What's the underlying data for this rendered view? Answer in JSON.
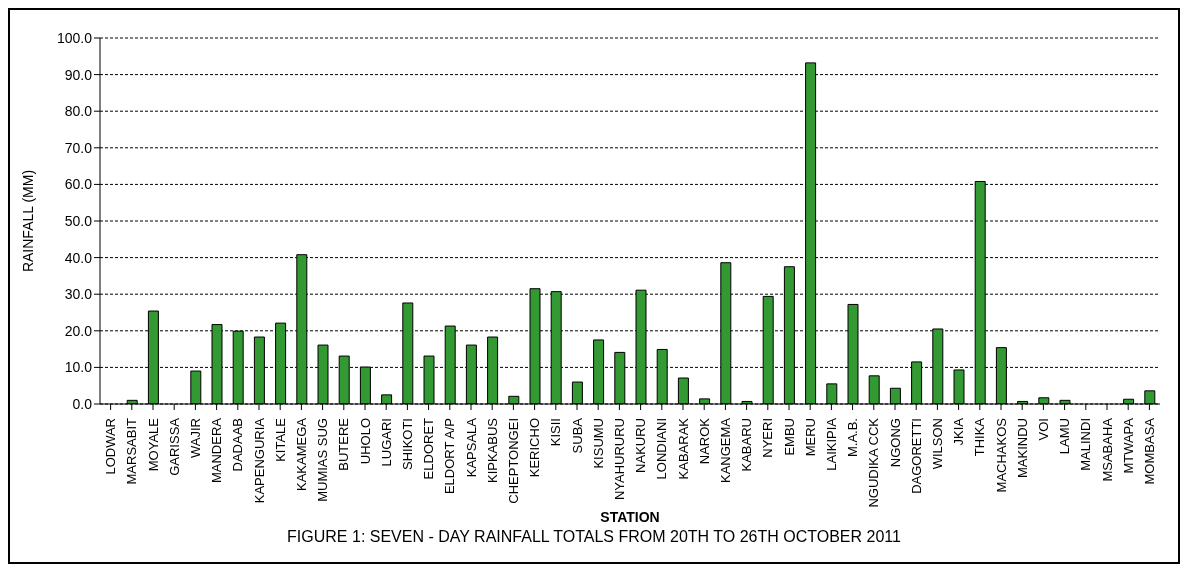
{
  "chart_data": {
    "type": "bar",
    "title": "FIGURE 1: SEVEN - DAY RAINFALL TOTALS FROM 20TH TO 26TH OCTOBER 2011",
    "xlabel": "STATION",
    "ylabel": "RAINFALL (MM)",
    "categories": [
      "LODWAR",
      "MARSABIT",
      "MOYALE",
      "GARISSA",
      "WAJIR",
      "MANDERA",
      "DADAAB",
      "KAPENGURIA",
      "KITALE",
      "KAKAMEGA",
      "MUMIAS SUG",
      "BUTERE",
      "UHOLO",
      "LUGARI",
      "SHIKOTI",
      "ELDORET",
      "ELDORT A/P",
      "KAPSALA",
      "KIPKABUS",
      "CHEPTONGEI",
      "KERICHO",
      "KISII",
      "SUBA",
      "KISUMU",
      "NYAHURURU",
      "NAKURU",
      "LONDIANI",
      "KABARAK",
      "NAROK",
      "KANGEMA",
      "KABARU",
      "NYERI",
      "EMBU",
      "MERU",
      "LAIKIPIA",
      "M.A.B.",
      "NGUDIKA CCK",
      "NGONG",
      "DAGORETTI",
      "WILSON",
      "JKIA",
      "THIKA",
      "MACHAKOS",
      "MAKINDU",
      "VOI",
      "LAMU",
      "MALINDI",
      "MSABAHA",
      "MTWAPA",
      "MOMBASA"
    ],
    "values": [
      0,
      1.0,
      25.4,
      0,
      9.0,
      21.7,
      19.9,
      18.3,
      22.1,
      40.8,
      16.1,
      13.1,
      10.1,
      2.5,
      27.6,
      13.1,
      21.3,
      16.1,
      18.3,
      2.1,
      31.5,
      30.7,
      6.0,
      17.5,
      14.1,
      31.1,
      14.9,
      7.1,
      1.4,
      38.6,
      0.7,
      29.4,
      37.5,
      93.2,
      5.5,
      27.2,
      7.7,
      4.3,
      11.5,
      20.5,
      9.3,
      60.8,
      15.4,
      0.7,
      1.7,
      1.0,
      0,
      0,
      1.3,
      3.6
    ],
    "color": "#339933",
    "ylim": [
      0,
      100
    ],
    "yticks": [
      {
        "value": 0,
        "label": "0.0"
      },
      {
        "value": 10,
        "label": "10.0"
      },
      {
        "value": 20,
        "label": "20.0"
      },
      {
        "value": 30,
        "label": "30.0"
      },
      {
        "value": 40,
        "label": "40.0"
      },
      {
        "value": 50,
        "label": "50.0"
      },
      {
        "value": 60,
        "label": "60.0"
      },
      {
        "value": 70,
        "label": "70.0"
      },
      {
        "value": 80,
        "label": "80.0"
      },
      {
        "value": 90,
        "label": "90.0"
      },
      {
        "value": 100,
        "label": "100.0"
      }
    ],
    "grid": "y",
    "legend": false
  }
}
